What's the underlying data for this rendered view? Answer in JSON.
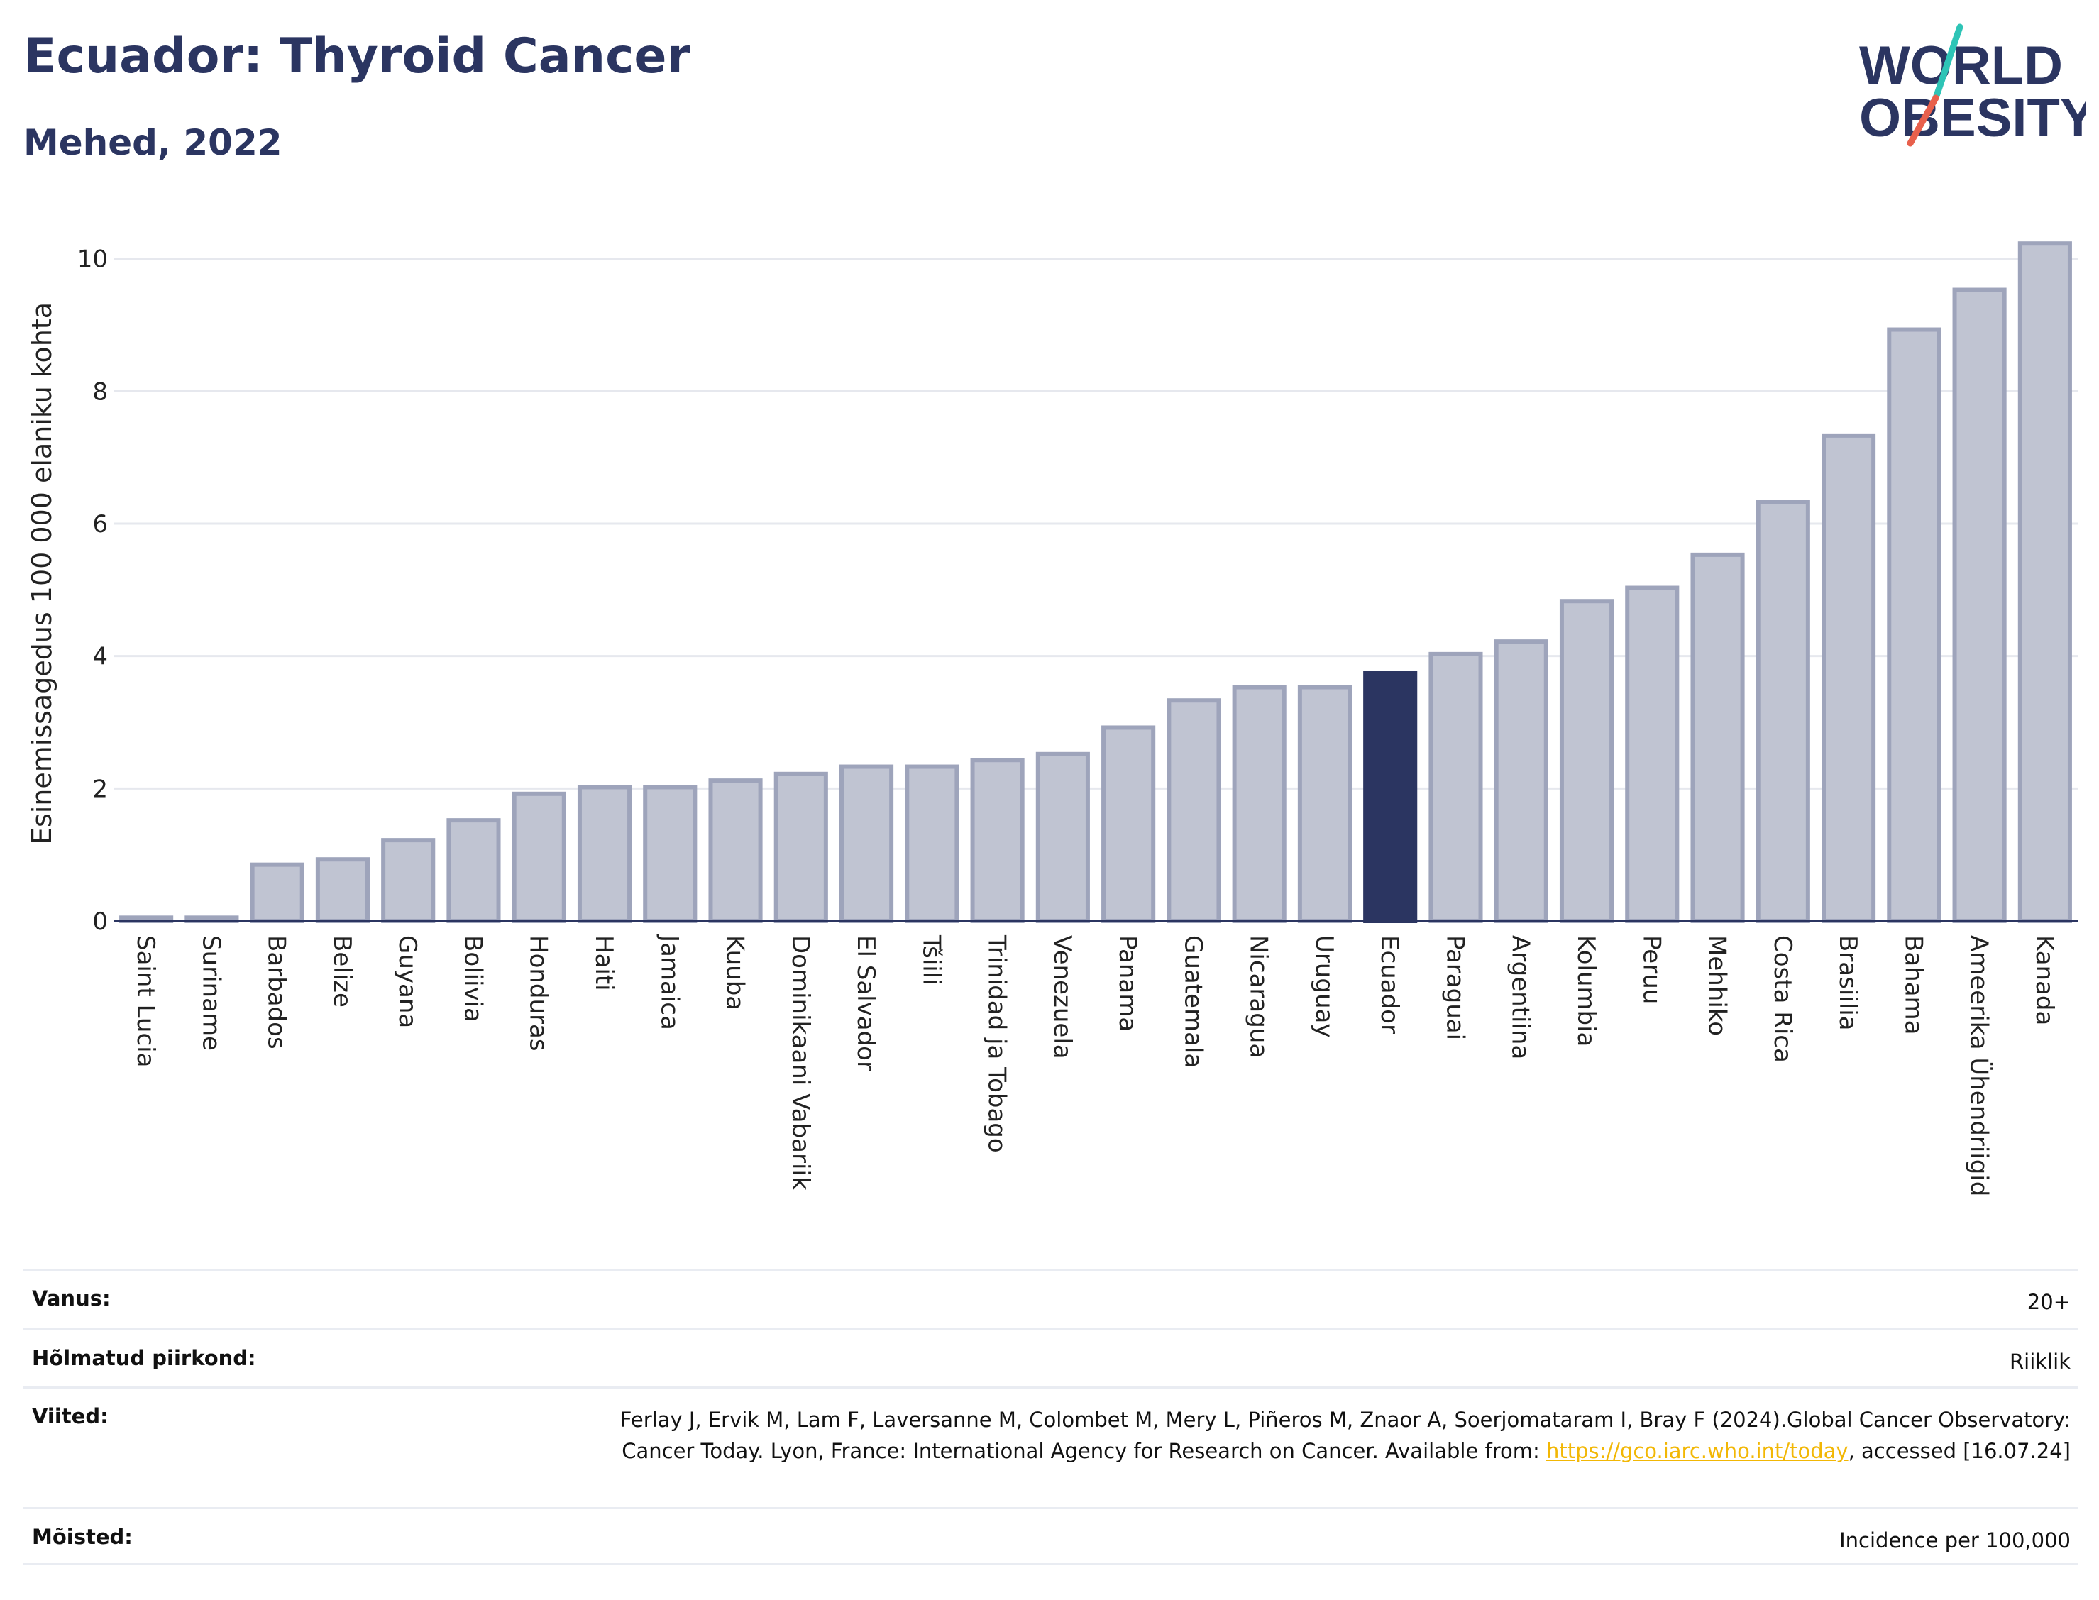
{
  "header": {
    "title": "Ecuador: Thyroid Cancer",
    "subtitle": "Mehed, 2022"
  },
  "logo": {
    "line1": "WORLD",
    "line2": "OBESITY",
    "accent_colors": [
      "#2ec4b6",
      "#e8604c"
    ],
    "text_color": "#2b3561"
  },
  "colors": {
    "bar": "#c0c4d2",
    "bar_stroke": "#9ea4bb",
    "highlight": "#2b3561",
    "grid": "#e6e8ee",
    "axis": "#2b3561"
  },
  "chart_data": {
    "type": "bar",
    "ylabel": "Esinemissagedus 100 000 elaniku kohta",
    "ylim": [
      0,
      10.5
    ],
    "yticks": [
      0,
      2,
      4,
      6,
      8,
      10
    ],
    "grid": true,
    "highlight": "Ecuador",
    "categories": [
      "Saint Lucia",
      "Suriname",
      "Barbados",
      "Belize",
      "Guyana",
      "Boliivia",
      "Honduras",
      "Haiti",
      "Jamaica",
      "Kuuba",
      "Dominikaani Vabariik",
      "El Salvador",
      "Tšiili",
      "Trinidad ja Tobago",
      "Venezuela",
      "Panama",
      "Guatemala",
      "Nicaragua",
      "Uruguay",
      "Ecuador",
      "Paraguai",
      "Argentiina",
      "Kolumbia",
      "Peruu",
      "Mehhiko",
      "Costa Rica",
      "Brasiilia",
      "Bahama",
      "Ameerika Ühendriigid",
      "Kanada"
    ],
    "values": [
      0.05,
      0.05,
      0.85,
      0.93,
      1.22,
      1.52,
      1.92,
      2.02,
      2.02,
      2.12,
      2.22,
      2.33,
      2.33,
      2.43,
      2.52,
      2.92,
      3.33,
      3.53,
      3.53,
      3.75,
      4.03,
      4.22,
      4.83,
      5.03,
      5.53,
      6.33,
      7.33,
      8.93,
      9.53,
      10.23
    ]
  },
  "meta": [
    {
      "label": "Vanus:",
      "value": "20+"
    },
    {
      "label": "Hõlmatud piirkond:",
      "value": "Riiklik"
    },
    {
      "label": "Viited:",
      "value": "Ferlay J, Ervik M, Lam F, Laversanne M, Colombet M, Mery L, Piñeros M, Znaor A, Soerjomataram I, Bray F (2024).Global Cancer Observatory: Cancer Today. Lyon, France: International Agency for Research on Cancer. Available from: ",
      "link": "https://gco.iarc.who.int/today",
      "suffix": ", accessed [16.07.24]"
    },
    {
      "label": "Mõisted:",
      "value": "Incidence per 100,000"
    }
  ]
}
